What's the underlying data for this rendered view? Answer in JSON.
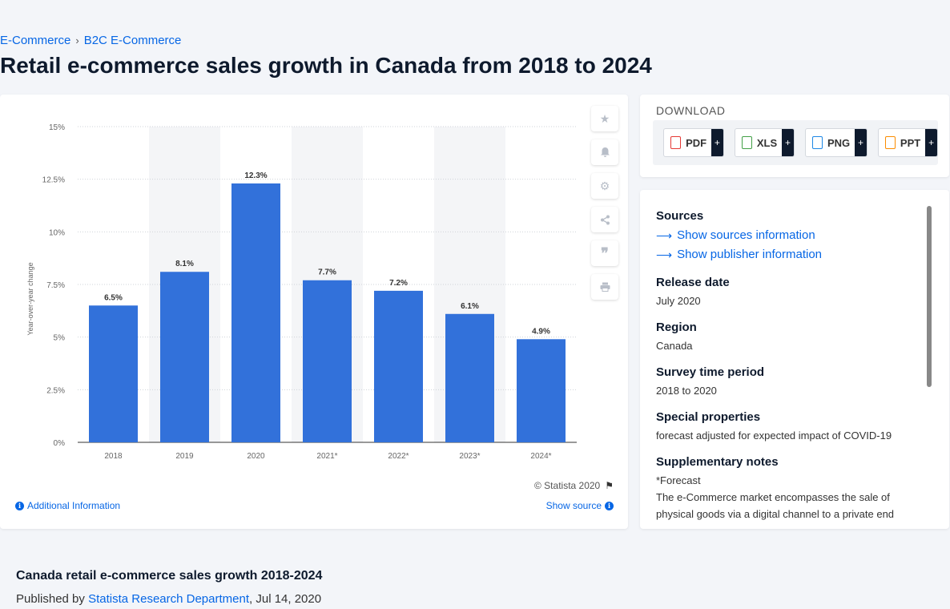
{
  "breadcrumb": {
    "item1": "E-Commerce",
    "sep": "›",
    "item2": "B2C E-Commerce"
  },
  "page_title": "Retail e-commerce sales growth in Canada from 2018 to 2024",
  "chart_card": {
    "copyright": "© Statista 2020",
    "additional_info": "Additional Information",
    "show_source": "Show source",
    "tools": [
      "star-icon",
      "bell-icon",
      "gear-icon",
      "share-icon",
      "quote-icon",
      "print-icon"
    ]
  },
  "download": {
    "title": "DOWNLOAD",
    "buttons": [
      {
        "label": "PDF",
        "color": "#e53935"
      },
      {
        "label": "XLS",
        "color": "#43a047"
      },
      {
        "label": "PNG",
        "color": "#1e88e5"
      },
      {
        "label": "PPT",
        "color": "#fb8c00"
      }
    ],
    "plus": "+"
  },
  "details": {
    "sources_label": "Sources",
    "show_sources": "Show sources information",
    "show_publisher": "Show publisher information",
    "release_date_label": "Release date",
    "release_date": "July 2020",
    "region_label": "Region",
    "region": "Canada",
    "survey_label": "Survey time period",
    "survey": "2018 to 2020",
    "special_label": "Special properties",
    "special": "forecast adjusted for expected impact of COVID-19",
    "notes_label": "Supplementary notes",
    "notes_1": "*Forecast",
    "notes_2": "The e-Commerce market encompasses the sale of physical goods via a digital channel to a private end"
  },
  "bottom": {
    "title": "Canada retail e-commerce sales growth 2018-2024",
    "published_prefix": "Published by",
    "publisher": "Statista Research Department",
    "date": ", Jul 14, 2020"
  },
  "chart_data": {
    "type": "bar",
    "categories": [
      "2018",
      "2019",
      "2020",
      "2021*",
      "2022*",
      "2023*",
      "2024*"
    ],
    "values": [
      6.5,
      8.1,
      12.3,
      7.7,
      7.2,
      6.1,
      4.9
    ],
    "value_labels": [
      "6.5%",
      "8.1%",
      "12.3%",
      "7.7%",
      "7.2%",
      "6.1%",
      "4.9%"
    ],
    "title": "",
    "xlabel": "",
    "ylabel": "Year-over-year change",
    "ylim": [
      0,
      15
    ],
    "yticks": [
      0,
      2.5,
      5,
      7.5,
      10,
      12.5,
      15
    ],
    "ytick_labels": [
      "0%",
      "2.5%",
      "5%",
      "7.5%",
      "10%",
      "12.5%",
      "15%"
    ],
    "grid": true,
    "bar_color": "#3271da",
    "band_color": "#f4f5f7"
  }
}
